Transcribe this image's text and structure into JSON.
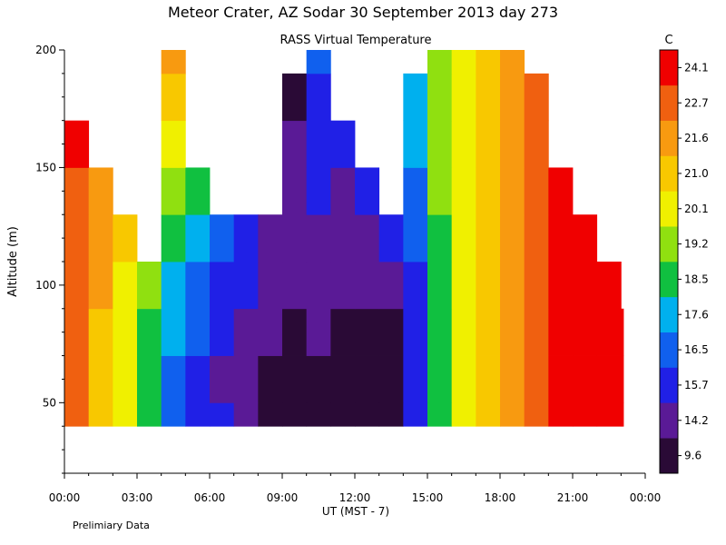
{
  "chart_data": {
    "type": "heatmap",
    "title": "Meteor Crater, AZ  Sodar  30 September 2013  day 273",
    "subtitle": "RASS Virtual Temperature",
    "xlabel": "UT  (MST - 7)",
    "ylabel": "Altitude (m)",
    "footnote": "Prelimiary Data",
    "colorbar_unit": "C",
    "x_tick_labels": [
      "00:00",
      "03:00",
      "06:00",
      "09:00",
      "12:00",
      "15:00",
      "18:00",
      "21:00",
      "00:00"
    ],
    "x_range_hours": [
      0,
      24
    ],
    "y_ticks": [
      50,
      100,
      150,
      200
    ],
    "y_range": [
      20,
      200
    ],
    "data_altitude_range": [
      40,
      200
    ],
    "grid": false,
    "legend": "colorbar-right",
    "color_levels": [
      {
        "label": "9.6",
        "color": "#2a0a36"
      },
      {
        "label": "14.2",
        "color": "#5a1a96"
      },
      {
        "label": "15.7",
        "color": "#2020e6"
      },
      {
        "label": "16.5",
        "color": "#1060ee"
      },
      {
        "label": "17.6",
        "color": "#00b0ee"
      },
      {
        "label": "18.5",
        "color": "#10c040"
      },
      {
        "label": "19.2",
        "color": "#90e010"
      },
      {
        "label": "20.1",
        "color": "#f0f000"
      },
      {
        "label": "21.0",
        "color": "#f8c800"
      },
      {
        "label": "21.6",
        "color": "#f89a10"
      },
      {
        "label": "22.7",
        "color": "#f06010"
      },
      {
        "label": "24.1",
        "color": "#f00000"
      }
    ],
    "time_columns_hours": [
      0,
      1,
      2,
      3,
      4,
      5,
      6,
      7,
      8,
      9,
      10,
      11,
      12,
      13,
      14,
      15,
      16,
      17,
      18,
      19,
      20,
      21,
      22,
      23
    ],
    "altitude_rows_m": [
      40,
      60,
      80,
      100,
      120,
      140,
      160,
      180,
      200
    ],
    "level_index_grid": [
      [
        10,
        8,
        7,
        5,
        3,
        2,
        2,
        1,
        0,
        0,
        0,
        0,
        0,
        0,
        2,
        5,
        7,
        8,
        9,
        10,
        11,
        11,
        11,
        11
      ],
      [
        10,
        8,
        7,
        5,
        3,
        2,
        1,
        1,
        0,
        0,
        0,
        0,
        0,
        0,
        2,
        5,
        7,
        8,
        9,
        10,
        11,
        11,
        11,
        11
      ],
      [
        10,
        8,
        7,
        5,
        4,
        3,
        2,
        1,
        1,
        0,
        1,
        0,
        0,
        0,
        2,
        5,
        7,
        8,
        9,
        10,
        11,
        11,
        11,
        11
      ],
      [
        10,
        9,
        7,
        6,
        4,
        3,
        2,
        2,
        1,
        1,
        1,
        1,
        1,
        1,
        2,
        5,
        7,
        8,
        9,
        10,
        11,
        11,
        11,
        null
      ],
      [
        10,
        9,
        8,
        null,
        5,
        4,
        3,
        2,
        1,
        1,
        1,
        1,
        1,
        2,
        3,
        5,
        7,
        8,
        9,
        10,
        11,
        11,
        null,
        null
      ],
      [
        10,
        9,
        null,
        null,
        6,
        5,
        null,
        null,
        null,
        1,
        2,
        1,
        2,
        null,
        3,
        6,
        7,
        8,
        9,
        10,
        11,
        null,
        null,
        null
      ],
      [
        11,
        null,
        null,
        null,
        7,
        null,
        null,
        null,
        null,
        1,
        2,
        2,
        null,
        null,
        4,
        6,
        7,
        8,
        9,
        10,
        null,
        null,
        null,
        null
      ],
      [
        null,
        null,
        null,
        null,
        8,
        null,
        null,
        null,
        null,
        0,
        2,
        null,
        null,
        null,
        4,
        6,
        7,
        8,
        9,
        10,
        null,
        null,
        null,
        null
      ],
      [
        null,
        null,
        null,
        null,
        9,
        null,
        null,
        null,
        null,
        null,
        3,
        null,
        null,
        null,
        null,
        6,
        7,
        8,
        9,
        null,
        null,
        null,
        null,
        null
      ]
    ]
  }
}
